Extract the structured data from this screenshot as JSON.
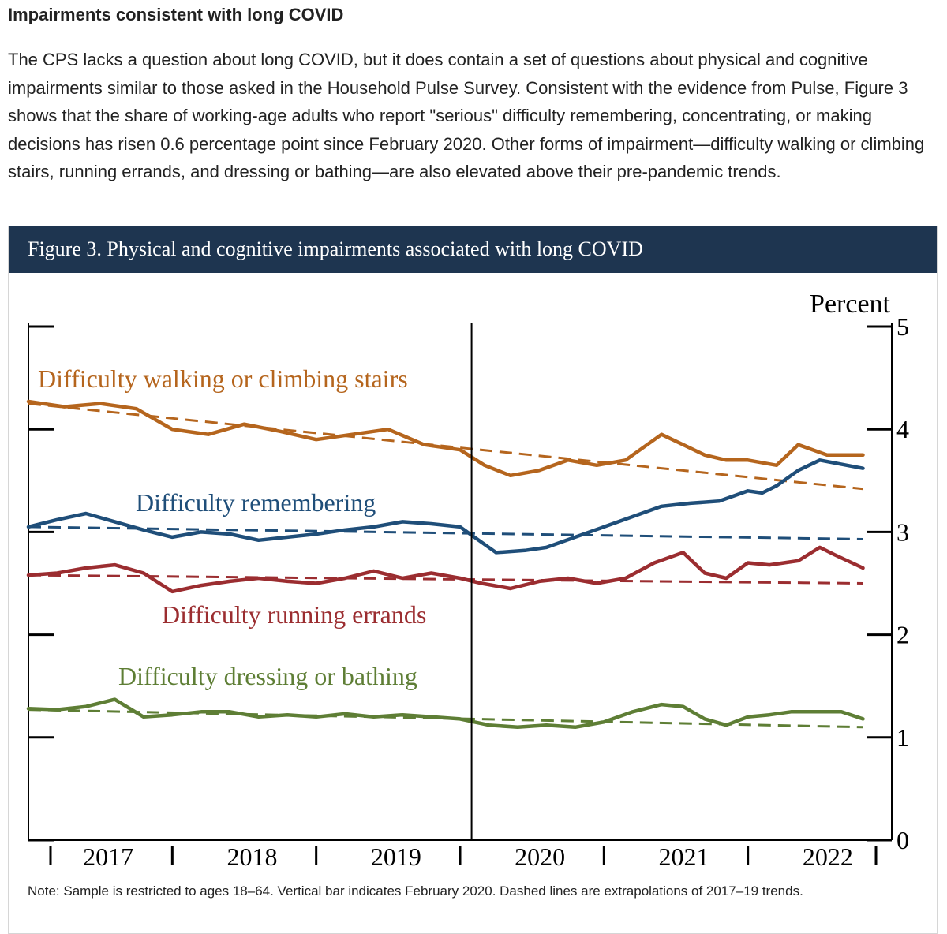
{
  "section": {
    "heading": "Impairments consistent with long COVID",
    "paragraph": "The CPS lacks a question about long COVID, but it does contain a set of questions about physical and cognitive impairments similar to those asked in the Household Pulse Survey. Consistent with the evidence from Pulse, Figure 3 shows that the share of working-age adults who report \"serious\" difficulty remembering, concentrating, or making decisions has risen 0.6 percentage point since February 2020. Other forms of impairment—difficulty walking or climbing stairs, running errands, and dressing or bathing—are also elevated above their pre-pandemic trends."
  },
  "figure": {
    "title": "Figure 3. Physical and cognitive impairments associated with long COVID",
    "note": "Note: Sample is restricted to ages 18–64. Vertical bar indicates February 2020. Dashed lines are extrapolations of 2017–19 trends."
  },
  "chart_data": {
    "type": "line",
    "title": "Figure 3. Physical and cognitive impairments associated with long COVID",
    "ylabel": "Percent",
    "ylim": [
      0,
      5
    ],
    "yticks": [
      0,
      1,
      2,
      3,
      4,
      5
    ],
    "xlim": [
      2017.0,
      2023.0
    ],
    "x_tick_labels": [
      "2017",
      "2018",
      "2019",
      "2020",
      "2021",
      "2022"
    ],
    "vertical_marker": {
      "x": 2020.08,
      "label": "February 2020"
    },
    "grid": false,
    "series": [
      {
        "name": "Difficulty walking or climbing stairs",
        "color": "#b5651d",
        "x": [
          2017.0,
          2017.25,
          2017.5,
          2017.75,
          2018.0,
          2018.25,
          2018.5,
          2018.75,
          2019.0,
          2019.25,
          2019.5,
          2019.75,
          2020.0,
          2020.17,
          2020.35,
          2020.55,
          2020.75,
          2020.95,
          2021.15,
          2021.4,
          2021.55,
          2021.7,
          2021.85,
          2022.0,
          2022.2,
          2022.35,
          2022.55,
          2022.8
        ],
        "values": [
          4.27,
          4.22,
          4.25,
          4.2,
          4.0,
          3.95,
          4.05,
          3.98,
          3.9,
          3.95,
          4.0,
          3.85,
          3.8,
          3.65,
          3.55,
          3.6,
          3.7,
          3.65,
          3.7,
          3.95,
          3.85,
          3.75,
          3.7,
          3.7,
          3.65,
          3.85,
          3.75,
          3.75
        ],
        "trend": {
          "x": [
            2017.0,
            2022.8
          ],
          "values": [
            4.25,
            3.42
          ]
        }
      },
      {
        "name": "Difficulty remembering",
        "color": "#1f4e79",
        "x": [
          2017.0,
          2017.2,
          2017.4,
          2017.6,
          2017.8,
          2018.0,
          2018.2,
          2018.4,
          2018.6,
          2018.8,
          2019.0,
          2019.2,
          2019.4,
          2019.6,
          2019.8,
          2020.0,
          2020.1,
          2020.25,
          2020.45,
          2020.6,
          2020.8,
          2021.0,
          2021.2,
          2021.4,
          2021.6,
          2021.8,
          2022.0,
          2022.1,
          2022.2,
          2022.35,
          2022.5,
          2022.8
        ],
        "values": [
          3.05,
          3.12,
          3.18,
          3.1,
          3.02,
          2.95,
          3.0,
          2.98,
          2.92,
          2.95,
          2.98,
          3.02,
          3.05,
          3.1,
          3.08,
          3.05,
          2.95,
          2.8,
          2.82,
          2.85,
          2.95,
          3.05,
          3.15,
          3.25,
          3.28,
          3.3,
          3.4,
          3.38,
          3.45,
          3.6,
          3.7,
          3.62
        ],
        "trend": {
          "x": [
            2017.0,
            2022.8
          ],
          "values": [
            3.05,
            2.93
          ]
        }
      },
      {
        "name": "Difficulty running errands",
        "color": "#9b2d30",
        "x": [
          2017.0,
          2017.2,
          2017.4,
          2017.6,
          2017.8,
          2018.0,
          2018.2,
          2018.4,
          2018.6,
          2018.8,
          2019.0,
          2019.2,
          2019.4,
          2019.6,
          2019.8,
          2020.0,
          2020.15,
          2020.35,
          2020.55,
          2020.75,
          2020.95,
          2021.15,
          2021.35,
          2021.55,
          2021.7,
          2021.85,
          2022.0,
          2022.15,
          2022.35,
          2022.5,
          2022.6,
          2022.8
        ],
        "values": [
          2.58,
          2.6,
          2.65,
          2.68,
          2.6,
          2.42,
          2.48,
          2.52,
          2.55,
          2.52,
          2.5,
          2.55,
          2.62,
          2.55,
          2.6,
          2.55,
          2.5,
          2.45,
          2.52,
          2.55,
          2.5,
          2.55,
          2.7,
          2.8,
          2.6,
          2.55,
          2.7,
          2.68,
          2.72,
          2.85,
          2.78,
          2.65
        ],
        "trend": {
          "x": [
            2017.0,
            2022.8
          ],
          "values": [
            2.58,
            2.5
          ]
        }
      },
      {
        "name": "Difficulty dressing or bathing",
        "color": "#5e7e35",
        "x": [
          2017.0,
          2017.2,
          2017.4,
          2017.6,
          2017.8,
          2018.0,
          2018.2,
          2018.4,
          2018.6,
          2018.8,
          2019.0,
          2019.2,
          2019.4,
          2019.6,
          2019.8,
          2020.0,
          2020.2,
          2020.4,
          2020.6,
          2020.8,
          2021.0,
          2021.2,
          2021.4,
          2021.55,
          2021.7,
          2021.85,
          2022.0,
          2022.15,
          2022.3,
          2022.5,
          2022.65,
          2022.8
        ],
        "values": [
          1.28,
          1.27,
          1.3,
          1.37,
          1.2,
          1.22,
          1.25,
          1.25,
          1.2,
          1.22,
          1.2,
          1.23,
          1.2,
          1.22,
          1.2,
          1.18,
          1.12,
          1.1,
          1.12,
          1.1,
          1.15,
          1.25,
          1.32,
          1.3,
          1.18,
          1.12,
          1.2,
          1.22,
          1.25,
          1.25,
          1.25,
          1.18
        ],
        "trend": {
          "x": [
            2017.0,
            2022.8
          ],
          "values": [
            1.27,
            1.1
          ]
        }
      }
    ]
  }
}
